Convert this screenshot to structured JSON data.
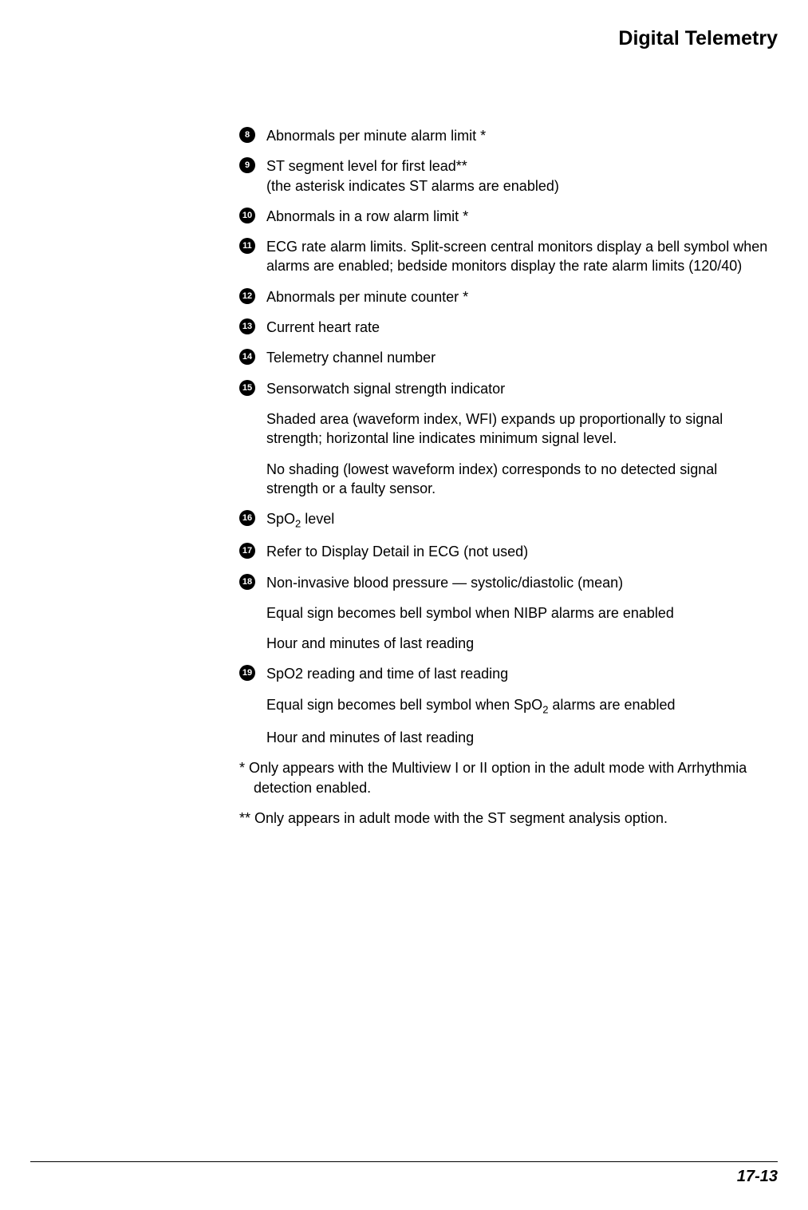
{
  "header": {
    "title": "Digital Telemetry"
  },
  "items": [
    {
      "num": "8",
      "text": "Abnormals per minute alarm limit *"
    },
    {
      "num": "9",
      "text": "ST segment level for first lead**\n(the asterisk indicates ST alarms are enabled)"
    },
    {
      "num": "10",
      "text": "Abnormals in a row alarm limit *"
    },
    {
      "num": "11",
      "text": "ECG rate alarm limits. Split-screen central monitors display a bell symbol when alarms are enabled; bedside monitors display the rate alarm limits (120/40)"
    },
    {
      "num": "12",
      "text": "Abnormals per minute counter *"
    },
    {
      "num": "13",
      "text": "Current heart rate"
    },
    {
      "num": "14",
      "text": "Telemetry channel number"
    },
    {
      "num": "15",
      "text": "Sensorwatch signal strength indicator"
    }
  ],
  "sub15a": "Shaded area (waveform index, WFI) expands up proportionally to signal strength; horizontal line indicates minimum signal level.",
  "sub15b": "No shading (lowest waveform index) corresponds to no detected signal strength or a faulty sensor.",
  "item16": {
    "num": "16",
    "pre": "SpO",
    "sub": "2",
    "post": " level"
  },
  "item17": {
    "num": "17",
    "text": "Refer to Display Detail in ECG (not used)"
  },
  "item18": {
    "num": "18",
    "text": "Non-invasive blood pressure — systolic/diastolic (mean)"
  },
  "sub18a": "Equal sign becomes bell symbol when NIBP alarms are enabled",
  "sub18b": "Hour and minutes of last reading",
  "item19": {
    "num": "19",
    "text": "SpO2 reading and time of last reading"
  },
  "sub19a": {
    "pre": "Equal sign becomes bell symbol when SpO",
    "sub": "2",
    "post": " alarms are enabled"
  },
  "sub19b": "Hour and minutes of last reading",
  "footnote1": "*  Only appears with the Multiview I or II option in the adult mode with Arrhythmia detection enabled.",
  "footnote2": "**  Only appears in adult mode with the ST segment analysis option.",
  "footer": {
    "pageNumber": "17-13"
  }
}
